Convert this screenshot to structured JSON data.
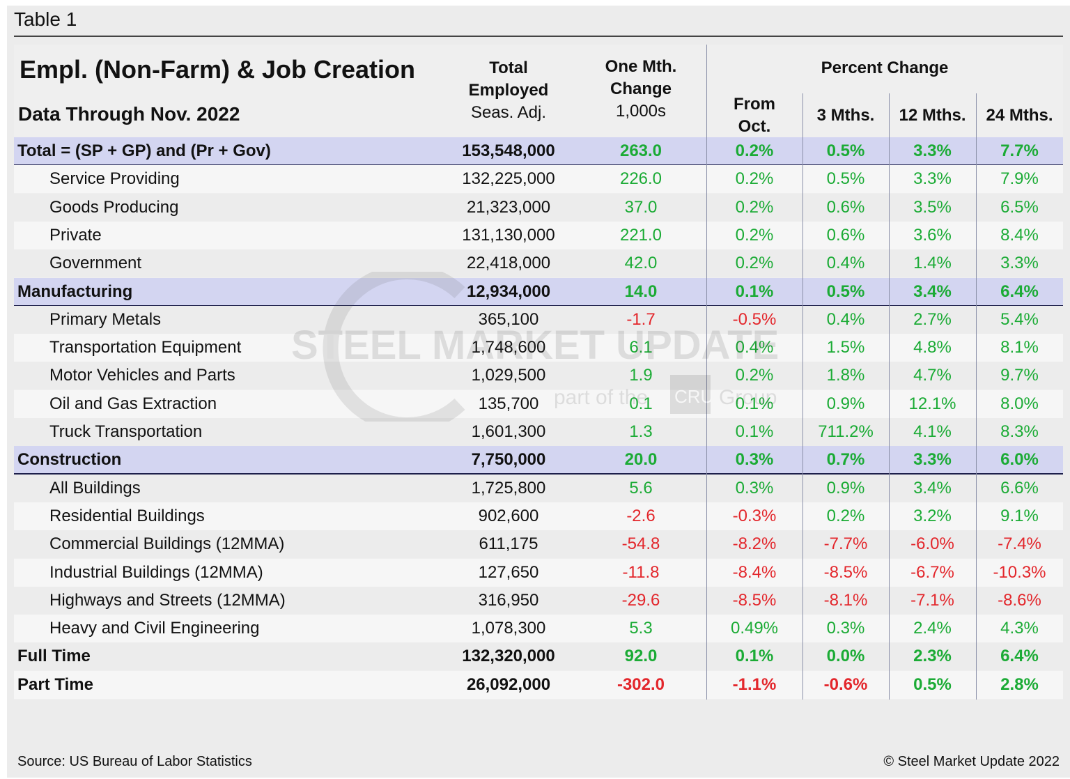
{
  "caption": "Table 1",
  "header": {
    "title": "Empl. (Non-Farm) & Job Creation",
    "subtitle": "Data Through Nov. 2022",
    "total_employed": [
      "Total",
      "Employed",
      "Seas. Adj."
    ],
    "one_month_change": [
      "One Mth.",
      "Change",
      "1,000s"
    ],
    "percent_change": "Percent Change",
    "from_oct": [
      "From",
      "Oct."
    ],
    "m3": "3 Mths.",
    "m12": "12 Mths.",
    "m24": "24 Mths."
  },
  "colors": {
    "positive": "#1bab35",
    "negative": "#e3262b",
    "highlight_row": "#d3d5f1"
  },
  "rows": [
    {
      "label": "Total = (SP + GP) and (Pr + Gov)",
      "style": "hl",
      "total": "153,548,000",
      "chg": "263.0",
      "oct": "0.2%",
      "m3": "0.5%",
      "m12": "3.3%",
      "m24": "7.7%"
    },
    {
      "label": "Service Providing",
      "style": "ind",
      "total": "132,225,000",
      "chg": "226.0",
      "oct": "0.2%",
      "m3": "0.5%",
      "m12": "3.3%",
      "m24": "7.9%"
    },
    {
      "label": "Goods Producing",
      "style": "ind",
      "total": "21,323,000",
      "chg": "37.0",
      "oct": "0.2%",
      "m3": "0.6%",
      "m12": "3.5%",
      "m24": "6.5%"
    },
    {
      "label": "Private",
      "style": "ind",
      "total": "131,130,000",
      "chg": "221.0",
      "oct": "0.2%",
      "m3": "0.6%",
      "m12": "3.6%",
      "m24": "8.4%"
    },
    {
      "label": "Government",
      "style": "ind",
      "total": "22,418,000",
      "chg": "42.0",
      "oct": "0.2%",
      "m3": "0.4%",
      "m12": "1.4%",
      "m24": "3.3%"
    },
    {
      "label": "Manufacturing",
      "style": "hl",
      "total": "12,934,000",
      "chg": "14.0",
      "oct": "0.1%",
      "m3": "0.5%",
      "m12": "3.4%",
      "m24": "6.4%"
    },
    {
      "label": "Primary Metals",
      "style": "ind",
      "total": "365,100",
      "chg": "-1.7",
      "oct": "-0.5%",
      "m3": "0.4%",
      "m12": "2.7%",
      "m24": "5.4%"
    },
    {
      "label": "Transportation Equipment",
      "style": "ind",
      "total": "1,748,600",
      "chg": "6.1",
      "oct": "0.4%",
      "m3": "1.5%",
      "m12": "4.8%",
      "m24": "8.1%"
    },
    {
      "label": "Motor Vehicles and Parts",
      "style": "ind",
      "total": "1,029,500",
      "chg": "1.9",
      "oct": "0.2%",
      "m3": "1.8%",
      "m12": "4.7%",
      "m24": "9.7%"
    },
    {
      "label": "Oil and Gas Extraction",
      "style": "ind",
      "total": "135,700",
      "chg": "0.1",
      "oct": "0.1%",
      "m3": "0.9%",
      "m12": "12.1%",
      "m24": "8.0%"
    },
    {
      "label": "Truck Transportation",
      "style": "ind",
      "total": "1,601,300",
      "chg": "1.3",
      "oct": "0.1%",
      "m3": "711.2%",
      "m12": "4.1%",
      "m24": "8.3%"
    },
    {
      "label": "Construction",
      "style": "hl",
      "total": "7,750,000",
      "chg": "20.0",
      "oct": "0.3%",
      "m3": "0.7%",
      "m12": "3.3%",
      "m24": "6.0%"
    },
    {
      "label": "All Buildings",
      "style": "ind",
      "total": "1,725,800",
      "chg": "5.6",
      "oct": "0.3%",
      "m3": "0.9%",
      "m12": "3.4%",
      "m24": "6.6%"
    },
    {
      "label": "Residential Buildings",
      "style": "ind",
      "total": "902,600",
      "chg": "-2.6",
      "oct": "-0.3%",
      "m3": "0.2%",
      "m12": "3.2%",
      "m24": "9.1%"
    },
    {
      "label": "Commercial Buildings (12MMA)",
      "style": "ind",
      "total": "611,175",
      "chg": "-54.8",
      "oct": "-8.2%",
      "m3": "-7.7%",
      "m12": "-6.0%",
      "m24": "-7.4%"
    },
    {
      "label": "Industrial Buildings (12MMA)",
      "style": "ind",
      "total": "127,650",
      "chg": "-11.8",
      "oct": "-8.4%",
      "m3": "-8.5%",
      "m12": "-6.7%",
      "m24": "-10.3%"
    },
    {
      "label": "Highways and Streets (12MMA)",
      "style": "ind",
      "total": "316,950",
      "chg": "-29.6",
      "oct": "-8.5%",
      "m3": "-8.1%",
      "m12": "-7.1%",
      "m24": "-8.6%"
    },
    {
      "label": "Heavy and Civil Engineering",
      "style": "ind",
      "total": "1,078,300",
      "chg": "5.3",
      "oct": "0.49%",
      "m3": "0.3%",
      "m12": "2.4%",
      "m24": "4.3%"
    },
    {
      "label": "Full Time",
      "style": "bold",
      "total": "132,320,000",
      "chg": "92.0",
      "oct": "0.1%",
      "m3": "0.0%",
      "m12": "2.3%",
      "m24": "6.4%"
    },
    {
      "label": "Part Time",
      "style": "bold",
      "total": "26,092,000",
      "chg": "-302.0",
      "oct": "-1.1%",
      "m3": "-0.6%",
      "m12": "0.5%",
      "m24": "2.8%"
    }
  ],
  "watermark": {
    "brand": "STEEL MARKET UPDATE",
    "tagline_a": "part of the",
    "badge": "CRU",
    "tagline_b": "Group"
  },
  "footer": {
    "source": "Source: US Bureau of Labor Statistics",
    "copyright": "© Steel Market Update 2022"
  }
}
